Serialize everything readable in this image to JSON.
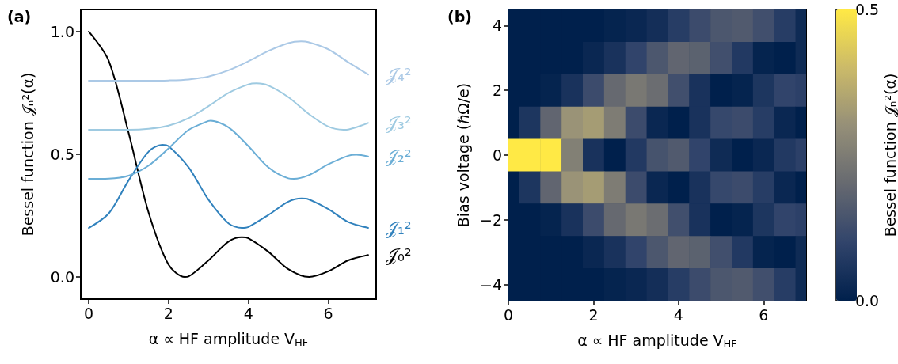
{
  "chart_data": [
    {
      "type": "line",
      "title": "(a)",
      "xlabel": "α ∝ HF amplitude V$_{HF}$",
      "ylabel": "Bessel function 𝒥ₙ²(α)",
      "series": [
        {
          "name": "𝒥₀²",
          "color": "#000000",
          "x": [
            0,
            0.5,
            1,
            1.5,
            2,
            2.405,
            2.5,
            3,
            3.5,
            3.832,
            4,
            4.5,
            5,
            5.52,
            6,
            6.5,
            7
          ],
          "values": [
            1.0,
            0.881,
            0.586,
            0.262,
            0.05,
            0.0,
            0.002,
            0.068,
            0.144,
            0.162,
            0.158,
            0.103,
            0.032,
            0.0,
            0.023,
            0.068,
            0.09
          ]
        },
        {
          "name": "𝒥₁²",
          "color": "#3182bd",
          "x": [
            0,
            0.5,
            1,
            1.5,
            1.841,
            2,
            2.5,
            3,
            3.5,
            3.832,
            4,
            4.5,
            5,
            5.331,
            5.5,
            6,
            6.5,
            7
          ],
          "values": [
            0.2,
            0.259,
            0.394,
            0.511,
            0.539,
            0.533,
            0.447,
            0.315,
            0.219,
            0.2,
            0.204,
            0.253,
            0.307,
            0.32,
            0.317,
            0.277,
            0.224,
            0.2
          ]
        },
        {
          "name": "𝒥₂²",
          "color": "#6baed6",
          "x": [
            0,
            0.5,
            1,
            1.5,
            2,
            2.5,
            3,
            3.054,
            3.5,
            4,
            4.5,
            5,
            5.136,
            5.5,
            6,
            6.5,
            6.706,
            7
          ],
          "values": [
            0.4,
            0.401,
            0.413,
            0.454,
            0.524,
            0.599,
            0.636,
            0.637,
            0.61,
            0.533,
            0.447,
            0.402,
            0.4,
            0.414,
            0.459,
            0.494,
            0.498,
            0.491
          ]
        },
        {
          "name": "𝒥₃²",
          "color": "#9ecae1",
          "x": [
            0,
            0.5,
            1,
            1.5,
            2,
            2.5,
            3,
            3.5,
            4,
            4.201,
            4.5,
            5,
            5.5,
            6,
            6.38,
            6.5,
            7
          ],
          "values": [
            0.6,
            0.6,
            0.6,
            0.604,
            0.617,
            0.647,
            0.696,
            0.75,
            0.785,
            0.789,
            0.78,
            0.733,
            0.666,
            0.613,
            0.6,
            0.601,
            0.628
          ]
        },
        {
          "name": "𝒥₄²",
          "color": "#abc9e6",
          "x": [
            0,
            0.5,
            1,
            1.5,
            2,
            2.5,
            3,
            3.5,
            4,
            4.5,
            5,
            5.318,
            5.5,
            6,
            6.5,
            7
          ],
          "values": [
            0.8,
            0.8,
            0.8,
            0.8,
            0.801,
            0.805,
            0.817,
            0.842,
            0.879,
            0.921,
            0.953,
            0.96,
            0.957,
            0.928,
            0.875,
            0.825
          ]
        }
      ],
      "xlim": [
        -0.2,
        7.2
      ],
      "xticks": [
        0,
        2,
        4,
        6
      ],
      "ylim": [
        -0.09,
        1.09
      ],
      "yticks": [
        {
          "value": 0,
          "label": "0.0"
        },
        {
          "value": 0.5,
          "label": "0.5"
        },
        {
          "value": 1,
          "label": "1.0"
        }
      ],
      "grid": false,
      "legend": false,
      "marker": "none",
      "line_style": "solid"
    },
    {
      "type": "heatmap",
      "title": "(b)",
      "xlabel": "α ∝ HF amplitude V$_{HF}$",
      "ylabel": "Bias voltage (ℏΩ/e)",
      "clabel": "Bessel function 𝒥ₙ²(α)",
      "x": [
        0,
        0.5,
        1,
        1.5,
        2,
        2.5,
        3,
        3.5,
        4,
        4.5,
        5,
        5.5,
        6,
        6.5,
        7
      ],
      "y_categories": [
        "4",
        null,
        "2",
        null,
        "0",
        null,
        "−2",
        null,
        "−4"
      ],
      "cells": [
        [
          0,
          0,
          0,
          0,
          0,
          0.01,
          0.02,
          0.04,
          0.08,
          0.12,
          0.15,
          0.16,
          0.13,
          0.08,
          0.03
        ],
        [
          0,
          0,
          0,
          0,
          0.02,
          0.05,
          0.1,
          0.15,
          0.19,
          0.18,
          0.13,
          0.07,
          0.01,
          0,
          0.03
        ],
        [
          0,
          0,
          0.01,
          0.05,
          0.12,
          0.2,
          0.24,
          0.21,
          0.13,
          0.05,
          0,
          0.01,
          0.06,
          0.1,
          0.09
        ],
        [
          0,
          0.06,
          0.19,
          0.31,
          0.33,
          0.25,
          0.12,
          0.02,
          0,
          0.05,
          0.11,
          0.12,
          0.08,
          0.02,
          0
        ],
        [
          1.0,
          0.88,
          0.59,
          0.26,
          0.05,
          0,
          0.07,
          0.14,
          0.16,
          0.1,
          0.03,
          0,
          0.02,
          0.07,
          0.09
        ],
        [
          0,
          0.06,
          0.19,
          0.31,
          0.33,
          0.25,
          0.12,
          0.02,
          0,
          0.05,
          0.11,
          0.12,
          0.08,
          0.02,
          0
        ],
        [
          0,
          0,
          0.01,
          0.05,
          0.12,
          0.2,
          0.24,
          0.21,
          0.13,
          0.05,
          0,
          0.01,
          0.06,
          0.1,
          0.09
        ],
        [
          0,
          0,
          0,
          0,
          0.02,
          0.05,
          0.1,
          0.15,
          0.19,
          0.18,
          0.13,
          0.07,
          0.01,
          0,
          0.03
        ],
        [
          0,
          0,
          0,
          0,
          0,
          0.01,
          0.02,
          0.04,
          0.08,
          0.12,
          0.15,
          0.16,
          0.13,
          0.08,
          0.03
        ]
      ],
      "xlim": [
        0,
        7
      ],
      "xticks": [
        0,
        2,
        4,
        6
      ],
      "clim": [
        0,
        0.5
      ],
      "cticks": [
        {
          "value": 0,
          "label": "0.0"
        },
        {
          "value": 0.5,
          "label": "0.5"
        }
      ]
    }
  ]
}
